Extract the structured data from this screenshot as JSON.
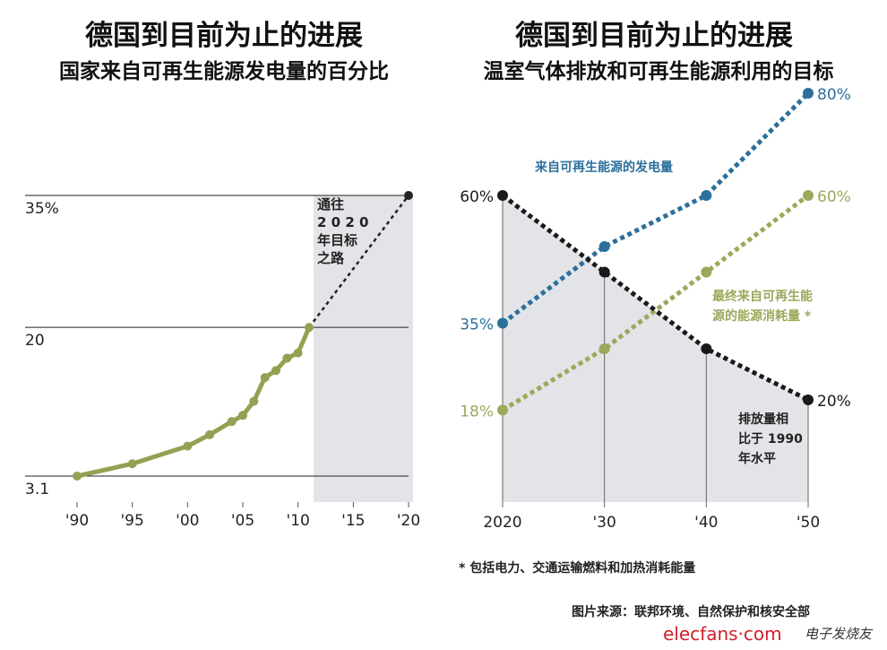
{
  "colors": {
    "left_line": "#93a152",
    "renewable_electricity": "#2b6f9b",
    "final_energy": "#9aa95b",
    "emissions": "#1a1a1a",
    "shade": "#e2e4e7"
  },
  "chart_data": [
    {
      "type": "line",
      "title": "德国到目前为止的进展",
      "subtitle": "国家来自可再生能源发电量的百分比",
      "x_tick_labels": [
        "'90",
        "'95",
        "'00",
        "'05",
        "'10",
        "'15",
        "'20"
      ],
      "x_ticks": [
        1990,
        1995,
        2000,
        2005,
        2010,
        2015,
        2020
      ],
      "y_tick_labels": [
        "3.1",
        "20",
        "35%"
      ],
      "y_ticks": [
        3.1,
        20,
        35
      ],
      "xlim": [
        1990,
        2020
      ],
      "series": [
        {
          "style": "solid",
          "x": [
            1990,
            1995,
            2000,
            2002,
            2004,
            2005,
            2006,
            2007,
            2008,
            2009,
            2010,
            2011
          ],
          "values": [
            3.1,
            4.5,
            6.5,
            7.8,
            9.3,
            10.0,
            11.6,
            14.3,
            15.1,
            16.5,
            17.1,
            20
          ]
        },
        {
          "style": "dotted",
          "x": [
            2011,
            2020
          ],
          "values": [
            20,
            35
          ]
        }
      ],
      "shaded_region_x": [
        2011,
        2020
      ],
      "annotation": "通往 2020 年目标之路",
      "annotation_lines": [
        "通往",
        "2 0 2 0",
        "年目标",
        "之路"
      ]
    },
    {
      "type": "line",
      "title": "德国到目前为止的进展",
      "subtitle": "温室气体排放和可再生能源利用的目标",
      "x_tick_labels": [
        "2020",
        "'30",
        "'40",
        "'50"
      ],
      "x": [
        2020,
        2030,
        2040,
        2050
      ],
      "ylim": [
        0,
        80
      ],
      "series": [
        {
          "name": "来自可再生能源的发电量",
          "values": [
            35,
            50,
            60,
            80
          ],
          "start_label": "35%",
          "end_label": "80%"
        },
        {
          "name": "最终来自可再生能源的能源消耗量 *",
          "name_lines": [
            "最终来自可再生能",
            "源的能源消耗量 *"
          ],
          "values": [
            18,
            30,
            45,
            60
          ],
          "start_label": "18%",
          "end_label": "60%"
        },
        {
          "name": "排放量相比于 1990 年水平",
          "name_lines": [
            "排放量相",
            "比于 1990",
            "年水平"
          ],
          "values": [
            60,
            45,
            30,
            20
          ],
          "start_label": "60%",
          "end_label": "20%",
          "shaded": true
        }
      ]
    }
  ],
  "footnote": "* 包括电力、交通运输燃料和加热消耗能量",
  "source": "图片来源：联邦环境、自然保护和核安全部",
  "watermark": {
    "logo": "elecfans·com",
    "text": "电子发烧友"
  }
}
